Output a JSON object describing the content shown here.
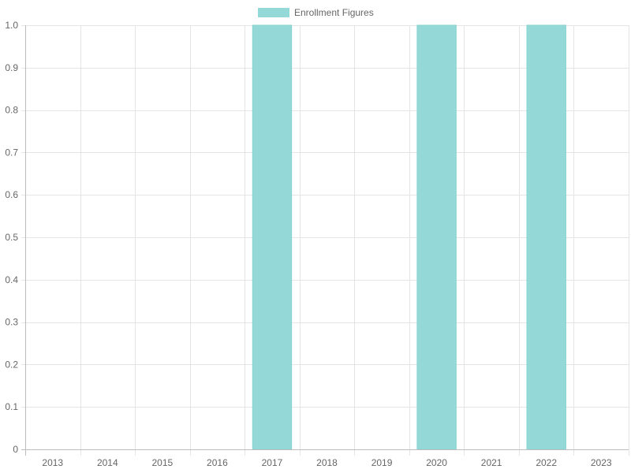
{
  "chart_data": {
    "type": "bar",
    "categories": [
      "2013",
      "2014",
      "2015",
      "2016",
      "2017",
      "2018",
      "2019",
      "2020",
      "2021",
      "2022",
      "2023"
    ],
    "series": [
      {
        "name": "Enrollment Figures",
        "values": [
          0,
          0,
          0,
          0,
          1.0,
          0,
          0,
          1.0,
          0,
          1.0,
          0
        ],
        "color": "#94d9d7",
        "border_color": "#83d3d1"
      }
    ],
    "ylim": [
      0,
      1.0
    ],
    "yticks": [
      "0",
      "0.1",
      "0.2",
      "0.3",
      "0.4",
      "0.5",
      "0.6",
      "0.7",
      "0.8",
      "0.9",
      "1.0"
    ],
    "grid": true,
    "legend_position": "top"
  }
}
